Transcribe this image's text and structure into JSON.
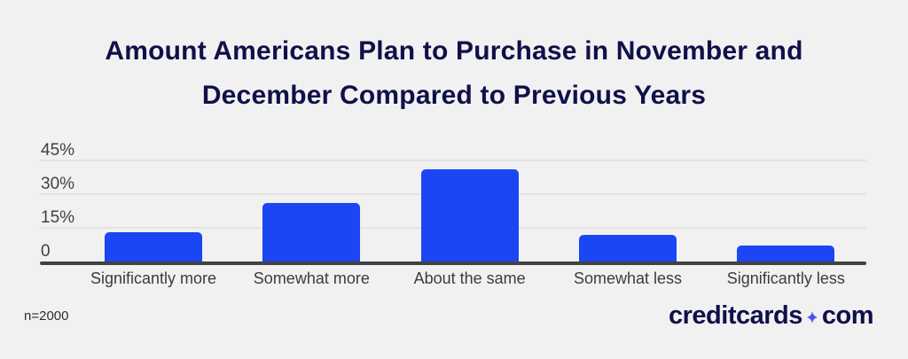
{
  "page": {
    "background": "#f1f1f2",
    "accent_navy": "#101049"
  },
  "title": {
    "text": "Amount Americans Plan to Purchase in November and December Compared to Previous Years",
    "lines": [
      "Amount Americans Plan to Purchase in November and",
      "December Compared to Previous Years"
    ]
  },
  "chart_data": {
    "type": "bar",
    "title": "Amount Americans Plan to Purchase in November and December Compared to Previous Years",
    "categories": [
      "Significantly more",
      "Somewhat more",
      "About the same",
      "Somewhat less",
      "Significantly less"
    ],
    "values": [
      13,
      26,
      41,
      12,
      7
    ],
    "unit": "%",
    "xlabel": "",
    "ylabel": "",
    "ylim": [
      0,
      48
    ],
    "yticks": [
      {
        "value": 0,
        "label": "0"
      },
      {
        "value": 15,
        "label": "15%"
      },
      {
        "value": 30,
        "label": "30%"
      },
      {
        "value": 45,
        "label": "45%"
      }
    ],
    "grid": true,
    "legend_position": "none",
    "bar_color": "#1b46f3",
    "gridline_color": "#e3e3e4",
    "axis_color": "#424242"
  },
  "footer": {
    "sample_note": "n=2000",
    "logo": {
      "part1": "creditcards",
      "part2": "com",
      "separator_icon": "sparkle-star-icon",
      "text_color": "#101049",
      "star_color": "#4355f2"
    }
  }
}
